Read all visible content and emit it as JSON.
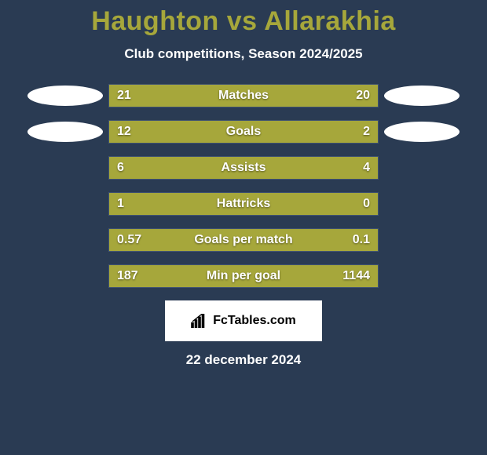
{
  "title": "Haughton vs Allarakhia",
  "subtitle": "Club competitions, Season 2024/2025",
  "date": "22 december 2024",
  "logo_text": "FcTables.com",
  "background_color": "#2a3b53",
  "title_color": "#a6a73b",
  "bar_color_left": "#a6a73b",
  "bar_color_right": "#a6a73b",
  "bar_border_color": "#3f5270",
  "value_text_color": "#ffffff",
  "stats": [
    {
      "label": "Matches",
      "left_val": "21",
      "right_val": "20",
      "left_pct": 51,
      "right_pct": 49,
      "show_icons": true
    },
    {
      "label": "Goals",
      "left_val": "12",
      "right_val": "2",
      "left_pct": 76,
      "right_pct": 24,
      "show_icons": true
    },
    {
      "label": "Assists",
      "left_val": "6",
      "right_val": "4",
      "left_pct": 60,
      "right_pct": 40,
      "show_icons": false
    },
    {
      "label": "Hattricks",
      "left_val": "1",
      "right_val": "0",
      "left_pct": 78,
      "right_pct": 22,
      "show_icons": false
    },
    {
      "label": "Goals per match",
      "left_val": "0.57",
      "right_val": "0.1",
      "left_pct": 85,
      "right_pct": 15,
      "show_icons": false
    },
    {
      "label": "Min per goal",
      "left_val": "187",
      "right_val": "1144",
      "left_pct": 100,
      "right_pct": 0,
      "show_icons": false
    }
  ]
}
